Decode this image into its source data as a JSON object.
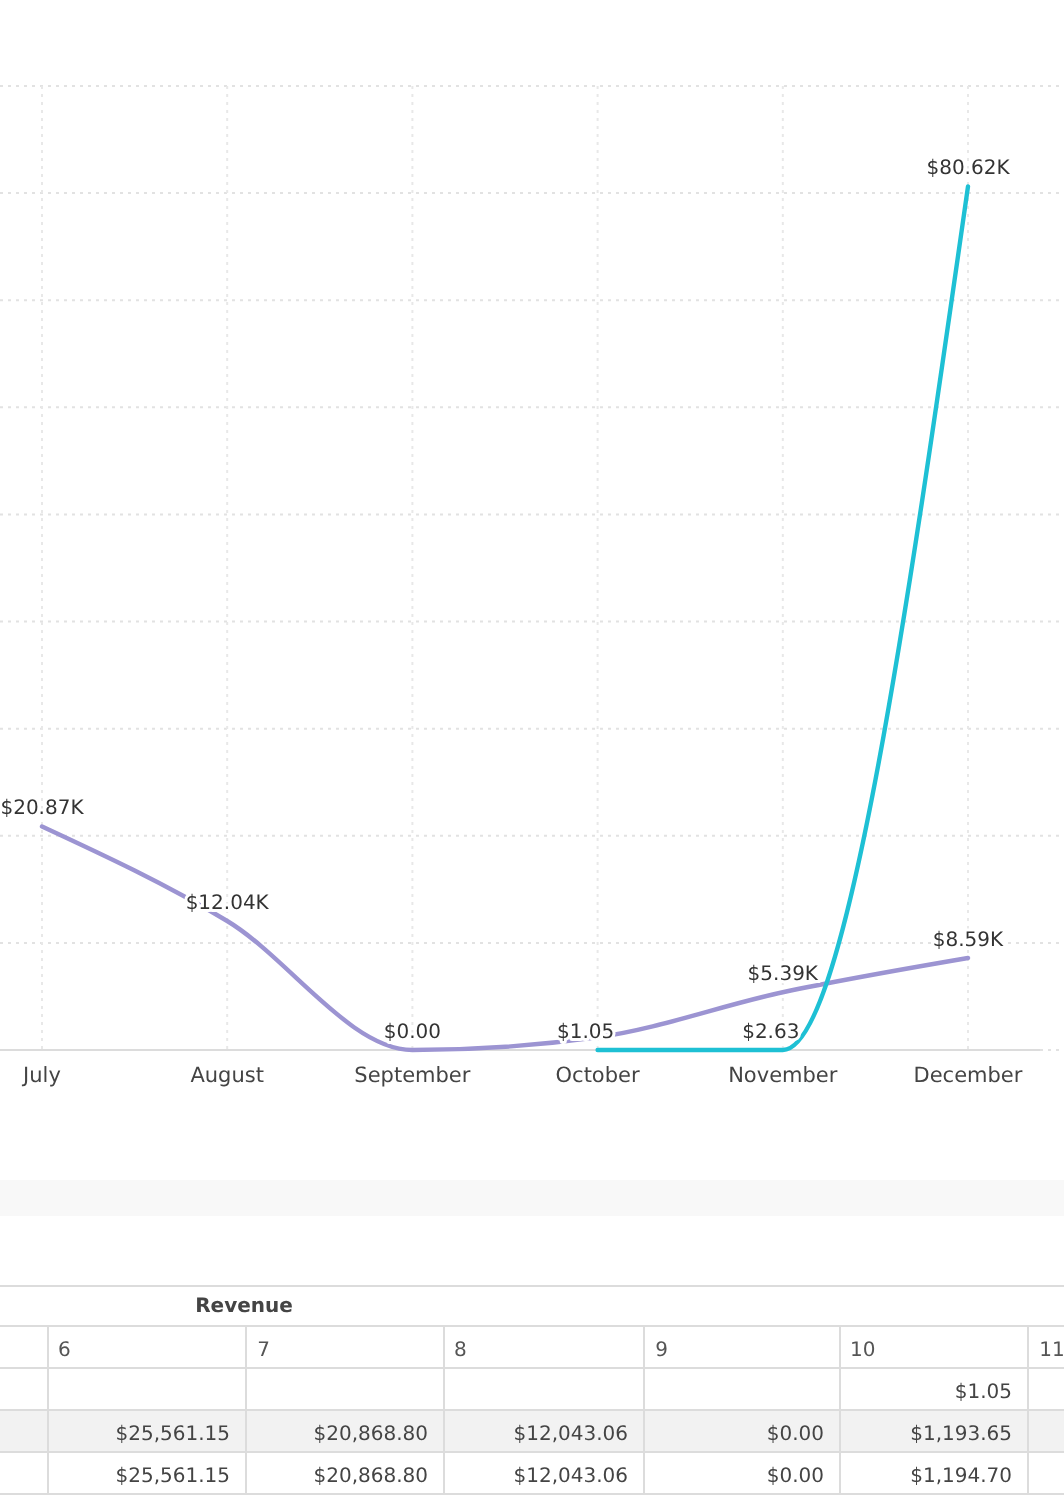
{
  "chart_data": {
    "type": "line",
    "categories": [
      "July",
      "August",
      "September",
      "October",
      "November",
      "December"
    ],
    "ylim": [
      0,
      90000
    ],
    "yticks": [
      {
        "value": 0,
        "label": null
      },
      {
        "value": 10000,
        "label": null
      },
      {
        "value": 20000,
        "label": null
      },
      {
        "value": 30000,
        "label": null
      },
      {
        "value": 40000,
        "label": null
      },
      {
        "value": 50000,
        "label": null
      },
      {
        "value": 60000,
        "label": null
      },
      {
        "value": 70000,
        "label": null
      },
      {
        "value": 80000,
        "label": null
      },
      {
        "value": 90000,
        "label": null
      }
    ],
    "tick_labels": "x",
    "grid": true,
    "series": [
      {
        "color": "#9c94d2",
        "values": [
          20868.8,
          12043.06,
          0,
          1193.65,
          5390,
          8590
        ],
        "value_labels": [
          "$20.87K",
          "$12.04K",
          "$0.00",
          null,
          "$5.39K",
          "$8.59K"
        ]
      },
      {
        "color": "#1ec0d4",
        "values": [
          null,
          null,
          null,
          1.05,
          2.63,
          80620
        ],
        "value_labels": [
          null,
          null,
          null,
          "$1.05",
          "$2.63",
          "$80.62K"
        ]
      }
    ],
    "annotations": [
      "Revenue",
      "6",
      "7",
      "8",
      "9",
      "10",
      "11",
      "$1.05",
      "$25,561.15",
      "$20,868.80",
      "$12,043.06",
      "$0.00",
      "$1,193.65",
      "$25,561.15",
      "$20,868.80",
      "$12,043.06",
      "$0.00",
      "$1,194.70"
    ]
  }
}
